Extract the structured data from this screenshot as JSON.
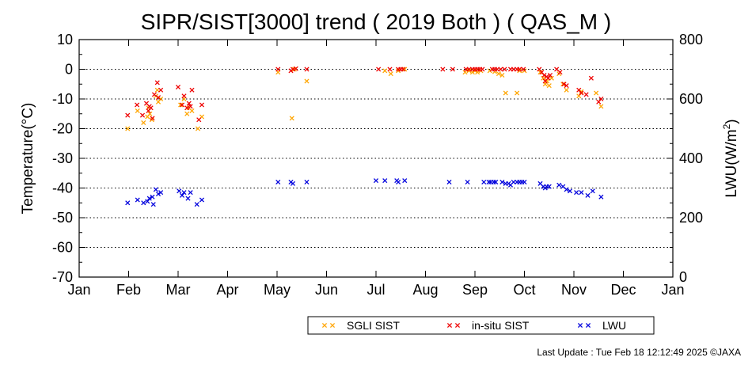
{
  "chart_data": {
    "type": "scatter",
    "title": "SIPR/SIST[3000] trend ( 2019 Both ) ( QAS_M )",
    "ylabel": "Temperature(°C)",
    "y2label_main": "LWU(W/m",
    "y2label_sup": "2",
    "y2label_end": ")",
    "ylim": [
      -70,
      10
    ],
    "yticks": [
      10,
      0,
      -10,
      -20,
      -30,
      -40,
      -50,
      -60,
      -70
    ],
    "y2lim": [
      0,
      800
    ],
    "y2ticks": [
      800,
      600,
      400,
      200,
      0
    ],
    "xlim": [
      0,
      12
    ],
    "months": [
      "Jan",
      "Feb",
      "Mar",
      "Apr",
      "May",
      "Jun",
      "Jul",
      "Aug",
      "Sep",
      "Oct",
      "Nov",
      "Dec",
      "Jan"
    ],
    "grid": true,
    "legend_placement": "bottom",
    "series": [
      {
        "name": "SGLI SIST",
        "axis": "left",
        "color": "#ffa500",
        "points": [
          [
            0.98,
            -20
          ],
          [
            1.18,
            -14
          ],
          [
            1.3,
            -18
          ],
          [
            1.38,
            -16
          ],
          [
            1.4,
            -13
          ],
          [
            1.43,
            -15
          ],
          [
            1.47,
            -17
          ],
          [
            1.55,
            -9
          ],
          [
            1.58,
            -7
          ],
          [
            1.6,
            -11
          ],
          [
            1.65,
            -10
          ],
          [
            2.05,
            -12
          ],
          [
            2.12,
            -10
          ],
          [
            2.18,
            -15
          ],
          [
            2.22,
            -13
          ],
          [
            2.28,
            -14
          ],
          [
            2.4,
            -20
          ],
          [
            2.48,
            -16
          ],
          [
            4.02,
            -1
          ],
          [
            4.3,
            -16.5
          ],
          [
            4.35,
            0
          ],
          [
            4.6,
            -4
          ],
          [
            6.18,
            -0.5
          ],
          [
            6.3,
            -1.5
          ],
          [
            6.45,
            -0.5
          ],
          [
            6.58,
            0
          ],
          [
            7.8,
            -1
          ],
          [
            7.88,
            -0.5
          ],
          [
            7.95,
            -1
          ],
          [
            8.0,
            -0.5
          ],
          [
            8.05,
            -1
          ],
          [
            8.12,
            -0.5
          ],
          [
            8.3,
            -0.5
          ],
          [
            8.4,
            -0.8
          ],
          [
            8.48,
            -1.5
          ],
          [
            8.55,
            -2
          ],
          [
            8.62,
            -8
          ],
          [
            8.85,
            -8
          ],
          [
            8.9,
            -0.5
          ],
          [
            9.0,
            -0.5
          ],
          [
            9.32,
            -1
          ],
          [
            9.38,
            -3
          ],
          [
            9.42,
            -5
          ],
          [
            9.46,
            -4
          ],
          [
            9.5,
            -5.5
          ],
          [
            9.55,
            -3
          ],
          [
            9.7,
            -1.5
          ],
          [
            9.78,
            -5
          ],
          [
            9.85,
            -7
          ],
          [
            10.1,
            -9
          ],
          [
            10.15,
            -7.5
          ],
          [
            10.45,
            -8
          ],
          [
            10.55,
            -12.5
          ]
        ]
      },
      {
        "name": "in-situ SIST",
        "axis": "left",
        "color": "#ee0000",
        "points": [
          [
            0.98,
            -15.5
          ],
          [
            1.17,
            -12
          ],
          [
            1.28,
            -15.5
          ],
          [
            1.36,
            -11.5
          ],
          [
            1.4,
            -14
          ],
          [
            1.42,
            -12.5
          ],
          [
            1.45,
            -13
          ],
          [
            1.48,
            -16.5
          ],
          [
            1.52,
            -8.5
          ],
          [
            1.58,
            -4.5
          ],
          [
            1.6,
            -9.5
          ],
          [
            1.65,
            -7
          ],
          [
            2.0,
            -6
          ],
          [
            2.08,
            -12
          ],
          [
            2.12,
            -9
          ],
          [
            2.18,
            -13
          ],
          [
            2.22,
            -11.5
          ],
          [
            2.25,
            -12.5
          ],
          [
            2.28,
            -7
          ],
          [
            2.42,
            -17
          ],
          [
            2.48,
            -12
          ],
          [
            4.02,
            0
          ],
          [
            4.28,
            -0.5
          ],
          [
            4.32,
            0
          ],
          [
            4.38,
            0.2
          ],
          [
            4.6,
            0
          ],
          [
            6.05,
            0
          ],
          [
            6.28,
            0
          ],
          [
            6.45,
            0
          ],
          [
            6.5,
            0
          ],
          [
            6.55,
            0
          ],
          [
            7.35,
            0
          ],
          [
            7.55,
            0
          ],
          [
            7.82,
            0
          ],
          [
            7.88,
            0
          ],
          [
            7.95,
            0
          ],
          [
            8.0,
            0
          ],
          [
            8.05,
            0
          ],
          [
            8.1,
            0
          ],
          [
            8.15,
            0
          ],
          [
            8.35,
            0
          ],
          [
            8.4,
            0
          ],
          [
            8.45,
            0
          ],
          [
            8.52,
            0
          ],
          [
            8.6,
            0
          ],
          [
            8.72,
            0
          ],
          [
            8.78,
            0
          ],
          [
            8.85,
            0
          ],
          [
            8.9,
            0
          ],
          [
            8.98,
            0
          ],
          [
            9.3,
            0
          ],
          [
            9.35,
            -1
          ],
          [
            9.4,
            -2
          ],
          [
            9.42,
            -4
          ],
          [
            9.45,
            -2.5
          ],
          [
            9.48,
            -3
          ],
          [
            9.52,
            -2
          ],
          [
            9.65,
            0
          ],
          [
            9.72,
            -1
          ],
          [
            9.8,
            -5
          ],
          [
            9.85,
            -5.5
          ],
          [
            10.1,
            -7
          ],
          [
            10.15,
            -8
          ],
          [
            10.25,
            -8.5
          ],
          [
            10.35,
            -3
          ],
          [
            10.5,
            -11
          ],
          [
            10.55,
            -10
          ]
        ]
      },
      {
        "name": "LWU",
        "axis": "right",
        "color": "#0000dd",
        "points": [
          [
            0.98,
            250
          ],
          [
            1.18,
            260
          ],
          [
            1.3,
            250
          ],
          [
            1.38,
            255
          ],
          [
            1.42,
            265
          ],
          [
            1.48,
            270
          ],
          [
            1.5,
            245
          ],
          [
            1.55,
            295
          ],
          [
            1.6,
            280
          ],
          [
            1.65,
            285
          ],
          [
            2.02,
            290
          ],
          [
            2.08,
            275
          ],
          [
            2.12,
            285
          ],
          [
            2.2,
            265
          ],
          [
            2.25,
            285
          ],
          [
            2.38,
            245
          ],
          [
            2.48,
            260
          ],
          [
            4.02,
            320
          ],
          [
            4.28,
            320
          ],
          [
            4.32,
            315
          ],
          [
            4.6,
            320
          ],
          [
            6.0,
            325
          ],
          [
            6.18,
            325
          ],
          [
            6.42,
            325
          ],
          [
            6.45,
            320
          ],
          [
            6.58,
            325
          ],
          [
            7.48,
            320
          ],
          [
            7.85,
            320
          ],
          [
            8.18,
            320
          ],
          [
            8.28,
            320
          ],
          [
            8.32,
            320
          ],
          [
            8.38,
            320
          ],
          [
            8.42,
            320
          ],
          [
            8.55,
            320
          ],
          [
            8.62,
            315
          ],
          [
            8.68,
            315
          ],
          [
            8.72,
            310
          ],
          [
            8.78,
            320
          ],
          [
            8.85,
            320
          ],
          [
            8.9,
            320
          ],
          [
            8.95,
            320
          ],
          [
            9.0,
            320
          ],
          [
            9.32,
            315
          ],
          [
            9.38,
            305
          ],
          [
            9.42,
            300
          ],
          [
            9.45,
            305
          ],
          [
            9.5,
            305
          ],
          [
            9.7,
            310
          ],
          [
            9.78,
            305
          ],
          [
            9.85,
            295
          ],
          [
            9.92,
            290
          ],
          [
            10.05,
            285
          ],
          [
            10.15,
            285
          ],
          [
            10.28,
            275
          ],
          [
            10.38,
            290
          ],
          [
            10.55,
            270
          ]
        ]
      }
    ]
  },
  "footer": {
    "last_update": "Last Update : Tue Feb 18 12:12:49 2025  ©JAXA"
  }
}
